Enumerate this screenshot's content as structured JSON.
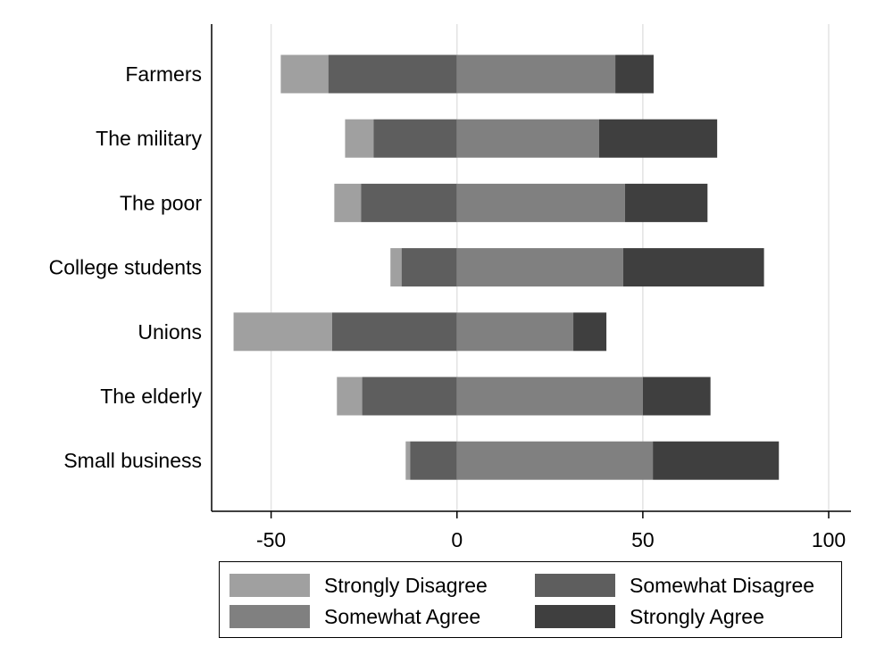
{
  "chart_data": {
    "type": "bar",
    "orientation": "horizontal",
    "stacked": "diverging",
    "title": "",
    "xlabel": "",
    "ylabel": "",
    "categories": [
      "Farmers",
      "The military",
      "The poor",
      "College students",
      "Unions",
      "The elderly",
      "Small business"
    ],
    "series": [
      {
        "name": "Strongly Disagree",
        "color": "#a0a0a0",
        "values": [
          12.8,
          7.7,
          7.2,
          3.0,
          26.5,
          6.8,
          1.2
        ]
      },
      {
        "name": "Somewhat Disagree",
        "color": "#5e5e5e",
        "values": [
          34.6,
          22.4,
          25.8,
          14.9,
          33.6,
          25.5,
          12.6
        ]
      },
      {
        "name": "Somewhat Agree",
        "color": "#808080",
        "values": [
          42.6,
          38.2,
          45.2,
          44.7,
          31.3,
          50.0,
          52.7
        ]
      },
      {
        "name": "Strongly Agree",
        "color": "#3f3f3f",
        "values": [
          10.3,
          31.8,
          22.2,
          37.9,
          8.9,
          18.2,
          33.9
        ]
      }
    ],
    "xlim": [
      -66,
      106
    ],
    "xticks": [
      "-50",
      "0",
      "50",
      "100"
    ],
    "xtick_values": [
      -50,
      0,
      50,
      100
    ],
    "grid": "vertical",
    "legend_position": "bottom"
  }
}
